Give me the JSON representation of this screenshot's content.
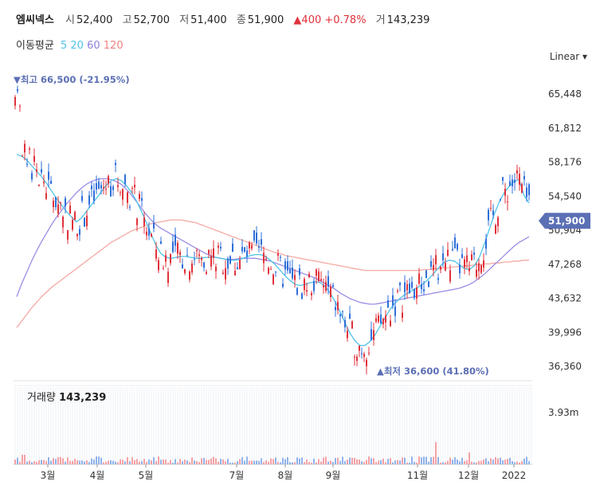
{
  "header": {
    "name": "엠씨넥스",
    "open_label": "시",
    "open": "52,400",
    "high_label": "고",
    "high": "52,700",
    "low_label": "저",
    "low": "51,400",
    "close_label": "종",
    "close": "51,900",
    "change": "▲400 +0.78%",
    "volume_label": "거",
    "volume": "143,239"
  },
  "ma_legend": {
    "label": "이동평균",
    "periods": [
      {
        "label": "5",
        "color": "#4fc3e8"
      },
      {
        "label": "20",
        "color": "#4fc3e8"
      },
      {
        "label": "60",
        "color": "#8a7fe0"
      },
      {
        "label": "120",
        "color": "#f08080"
      }
    ]
  },
  "scale_toggle": "Linear ▾",
  "colors": {
    "up": "#e0313b",
    "down": "#2f6fd9",
    "ma5": "#4fc3e8",
    "ma60": "#9b8ce6",
    "ma120": "#f4a9a3",
    "accent": "#5b6fb5"
  },
  "chart_data": {
    "type": "candlestick",
    "y_ticks": [
      "65,448",
      "61,812",
      "58,176",
      "54,540",
      "50,904",
      "47,268",
      "43,632",
      "39,996",
      "36,360"
    ],
    "ylim": [
      36360,
      65448
    ],
    "x_ticks": [
      "3월",
      "4월",
      "5월",
      "7월",
      "8월",
      "9월",
      "11월",
      "12월",
      "2022"
    ],
    "last_price_label": "51,900",
    "max_annotation": "▼최고 66,500 (-21.95%)",
    "min_annotation": "▲최저 36,600 (41.80%)",
    "volume_title": "거래량",
    "volume_value": "143,239",
    "volume_axis_tick": "3.93m",
    "ma5_close_series": [
      59000,
      58800,
      58400,
      57800,
      57200,
      56600,
      55900,
      55100,
      54300,
      53600,
      52900,
      52300,
      51800,
      52200,
      52900,
      53600,
      54300,
      55000,
      55700,
      56200,
      56400,
      56200,
      55700,
      55000,
      54100,
      53000,
      51800,
      50500,
      49300,
      48400,
      48000,
      47900,
      48000,
      48100,
      48100,
      48000,
      47900,
      47900,
      48000,
      48000,
      48000,
      47900,
      47800,
      47700,
      47700,
      47800,
      48000,
      48200,
      48300,
      48300,
      48100,
      47700,
      47200,
      46600,
      46000,
      45500,
      45100,
      45000,
      45100,
      45300,
      45400,
      45300,
      44900,
      44200,
      43300,
      42200,
      41000,
      39900,
      39100,
      38600,
      38600,
      39000,
      39700,
      40600,
      41500,
      42400,
      43100,
      43600,
      44000,
      44300,
      44600,
      44900,
      45300,
      45800,
      46400,
      47000,
      47500,
      47700,
      47600,
      47200,
      46800,
      46700,
      47100,
      48000,
      49400,
      51000,
      52600,
      53900,
      54900,
      55600,
      56100,
      56300,
      54600,
      53800
    ],
    "ma60_series": [
      43800,
      45200,
      46400,
      47600,
      48700,
      49700,
      50600,
      51500,
      52300,
      53000,
      53700,
      54300,
      54900,
      55400,
      55800,
      56100,
      56300,
      56400,
      56400,
      56300,
      56100,
      55800,
      55300,
      54700,
      54000,
      53300,
      52600,
      52000,
      51500,
      51100,
      50800,
      50500,
      50200,
      49900,
      49600,
      49300,
      49000,
      48700,
      48400,
      48200,
      48000,
      47900,
      47800,
      47800,
      47800,
      47900,
      47900,
      47900,
      47900,
      47800,
      47700,
      47600,
      47400,
      47200,
      47000,
      46800,
      46600,
      46400,
      46200,
      46000,
      45800,
      45500,
      45200,
      44900,
      44600,
      44200,
      43900,
      43600,
      43400,
      43200,
      43100,
      43000,
      43000,
      43100,
      43200,
      43300,
      43400,
      43500,
      43600,
      43700,
      43800,
      43900,
      44000,
      44100,
      44200,
      44300,
      44400,
      44500,
      44600,
      44700,
      44900,
      45100,
      45400,
      45800,
      46200,
      46700,
      47200,
      47700,
      48200,
      48700,
      49200,
      49600,
      49900,
      50200
    ],
    "ma120_series": [
      40500,
      41200,
      41900,
      42600,
      43200,
      43800,
      44300,
      44800,
      45200,
      45600,
      46000,
      46400,
      46800,
      47200,
      47600,
      48000,
      48400,
      48800,
      49200,
      49600,
      49900,
      50200,
      50500,
      50800,
      51000,
      51200,
      51400,
      51600,
      51700,
      51800,
      51900,
      52000,
      52000,
      52000,
      51900,
      51800,
      51700,
      51500,
      51300,
      51100,
      50900,
      50700,
      50500,
      50300,
      50100,
      49900,
      49700,
      49500,
      49300,
      49100,
      48900,
      48700,
      48500,
      48400,
      48200,
      48100,
      48000,
      47900,
      47800,
      47700,
      47600,
      47500,
      47400,
      47300,
      47200,
      47100,
      47000,
      46900,
      46800,
      46700,
      46600,
      46600,
      46600,
      46600,
      46600,
      46600,
      46600,
      46600,
      46600,
      46600,
      46600,
      46600,
      46700,
      46700,
      46800,
      46800,
      46900,
      46900,
      47000,
      47000,
      47100,
      47100,
      47200,
      47200,
      47300,
      47300,
      47400,
      47400,
      47500,
      47500,
      47600,
      47600,
      47700,
      47700
    ]
  }
}
